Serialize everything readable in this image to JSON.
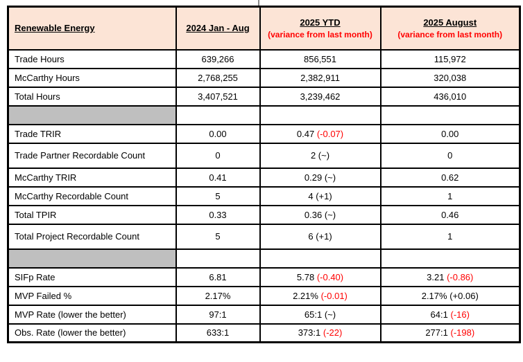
{
  "colors": {
    "header_bg": "#FCE4D6",
    "separator_bg": "#BFBFBF",
    "variance_red": "#FF0000",
    "border": "#000000",
    "page_bg": "#FFFFFF"
  },
  "table": {
    "header": {
      "col1": "Renewable Energy",
      "col2": "2024 Jan - Aug",
      "col3_title": "2025 YTD",
      "col3_sub": "(variance from last month)",
      "col4_title": "2025 August",
      "col4_sub": "(variance from last month)"
    },
    "rows": [
      {
        "kind": "data",
        "label": "Trade Hours",
        "cells": [
          {
            "text": "639,266"
          },
          {
            "text": "856,551"
          },
          {
            "text": "115,972"
          }
        ]
      },
      {
        "kind": "data",
        "label": "McCarthy Hours",
        "cells": [
          {
            "text": "2,768,255"
          },
          {
            "text": "2,382,911"
          },
          {
            "text": "320,038"
          }
        ]
      },
      {
        "kind": "data",
        "label": "Total Hours",
        "cells": [
          {
            "text": "3,407,521"
          },
          {
            "text": "3,239,462"
          },
          {
            "text": "436,010"
          }
        ]
      },
      {
        "kind": "separator"
      },
      {
        "kind": "data",
        "label": "Trade TRIR",
        "cells": [
          {
            "text": "0.00"
          },
          {
            "text": "0.47",
            "variance": "(-0.07)",
            "variance_red": true
          },
          {
            "text": "0.00"
          }
        ]
      },
      {
        "kind": "data",
        "label": "Trade Partner Recordable Count",
        "tall": true,
        "cells": [
          {
            "text": "0"
          },
          {
            "text": "2",
            "variance": "(~)"
          },
          {
            "text": "0"
          }
        ]
      },
      {
        "kind": "data",
        "label": "McCarthy TRIR",
        "cells": [
          {
            "text": "0.41"
          },
          {
            "text": "0.29",
            "variance": "(~)"
          },
          {
            "text": "0.62"
          }
        ]
      },
      {
        "kind": "data",
        "label": "McCarthy Recordable Count",
        "cells": [
          {
            "text": "5"
          },
          {
            "text": "4",
            "variance": "(+1)"
          },
          {
            "text": "1"
          }
        ]
      },
      {
        "kind": "data",
        "label": "Total TPIR",
        "cells": [
          {
            "text": "0.33"
          },
          {
            "text": "0.36",
            "variance": "(~)"
          },
          {
            "text": "0.46"
          }
        ]
      },
      {
        "kind": "data",
        "label": "Total Project Recordable Count",
        "tall": true,
        "cells": [
          {
            "text": "5"
          },
          {
            "text": "6",
            "variance": "(+1)"
          },
          {
            "text": "1"
          }
        ]
      },
      {
        "kind": "separator"
      },
      {
        "kind": "data",
        "label": "SIFp Rate",
        "cells": [
          {
            "text": "6.81"
          },
          {
            "text": "5.78",
            "variance": "(-0.40)",
            "variance_red": true
          },
          {
            "text": "3.21",
            "variance": "(-0.86)",
            "variance_red": true
          }
        ]
      },
      {
        "kind": "data",
        "label": "MVP Failed %",
        "cells": [
          {
            "text": "2.17%"
          },
          {
            "text": "2.21%",
            "variance": "(-0.01)",
            "variance_red": true
          },
          {
            "text": "2.17%",
            "variance": "(+0.06)"
          }
        ]
      },
      {
        "kind": "data",
        "label": "MVP Rate (lower the better)",
        "cells": [
          {
            "text": "97:1"
          },
          {
            "text": "65:1",
            "variance": "(~)"
          },
          {
            "text": "64:1",
            "variance": "(-16)",
            "variance_red": true
          }
        ]
      },
      {
        "kind": "data",
        "label": "Obs. Rate (lower the better)",
        "cells": [
          {
            "text": "633:1"
          },
          {
            "text": "373:1",
            "variance": "(-22)",
            "variance_red": true
          },
          {
            "text": "277:1",
            "variance": "(-198)",
            "variance_red": true
          }
        ]
      }
    ]
  }
}
